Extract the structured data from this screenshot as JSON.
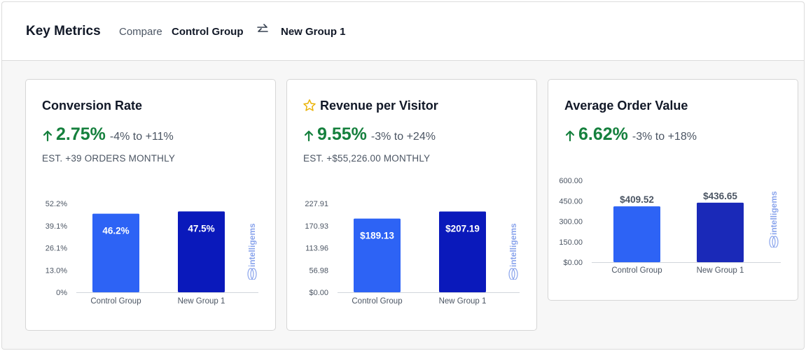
{
  "header": {
    "title": "Key Metrics",
    "compare_label": "Compare",
    "control_group": "Control Group",
    "new_group": "New Group 1"
  },
  "cards": [
    {
      "title": "Conversion Rate",
      "starred": false,
      "lift": "2.75%",
      "range": "-4% to +11%",
      "estimate": "EST. +39 ORDERS MONTHLY",
      "chart_data": {
        "type": "bar",
        "categories": [
          "Control Group",
          "New Group 1"
        ],
        "values": [
          46.2,
          47.5
        ],
        "value_labels": [
          "46.2%",
          "47.5%"
        ],
        "label_position": "inside",
        "yticks": [
          "0%",
          "13.0%",
          "26.1%",
          "39.1%",
          "52.2%"
        ],
        "ylim": [
          0,
          52.2
        ],
        "colors": [
          "#2d63f5",
          "#0a19bb"
        ]
      }
    },
    {
      "title": "Revenue per Visitor",
      "starred": true,
      "lift": "9.55%",
      "range": "-3% to +24%",
      "estimate": "EST. +$55,226.00 MONTHLY",
      "chart_data": {
        "type": "bar",
        "categories": [
          "Control Group",
          "New Group 1"
        ],
        "values": [
          189.13,
          207.19
        ],
        "value_labels": [
          "$189.13",
          "$207.19"
        ],
        "label_position": "inside",
        "yticks": [
          "$0.00",
          "56.98",
          "113.96",
          "170.93",
          "227.91"
        ],
        "ylim": [
          0,
          227.91
        ],
        "colors": [
          "#2d63f5",
          "#0a19bb"
        ]
      }
    },
    {
      "title": "Average Order Value",
      "starred": false,
      "lift": "6.62%",
      "range": "-3% to +18%",
      "estimate": "",
      "chart_data": {
        "type": "bar",
        "categories": [
          "Control Group",
          "New Group 1"
        ],
        "values": [
          409.52,
          436.65
        ],
        "value_labels": [
          "$409.52",
          "$436.65"
        ],
        "label_position": "above",
        "yticks": [
          "$0.00",
          "150.00",
          "300.00",
          "450.00",
          "600.00"
        ],
        "ylim": [
          0,
          600
        ],
        "colors": [
          "#2d63f5",
          "#1a29b8"
        ]
      }
    }
  ],
  "watermark": "intelligems",
  "colors": {
    "positive": "#15803d",
    "star": "#eab308",
    "watermark": "#8aa4ec"
  }
}
